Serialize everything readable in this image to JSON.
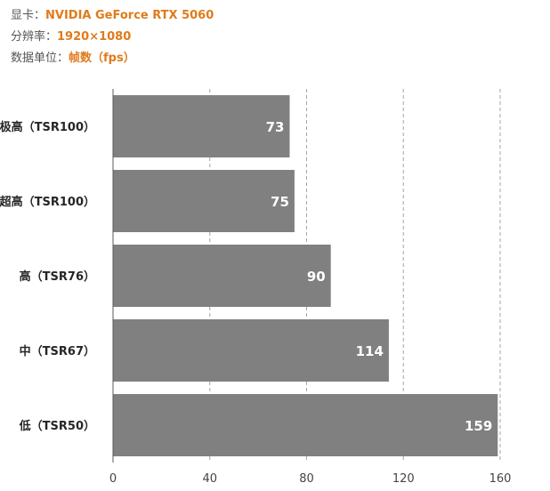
{
  "header": {
    "gpu_label": "显卡：",
    "gpu_value": "NVIDIA GeForce RTX 5060",
    "resolution_label": "分辨率：",
    "resolution_value": "1920×1080",
    "unit_label": "数据单位：",
    "unit_value": "帧数（fps）"
  },
  "colors": {
    "bar": "#808080",
    "bar_label": "#ffffff",
    "highlight_text": "#e07b1a",
    "category_text": "#262626",
    "tick_text": "#444444",
    "grid": "#a6a6a6",
    "axis": "#595959"
  },
  "chart_data": {
    "type": "bar",
    "orientation": "horizontal",
    "categories": [
      "极高（TSR100）",
      "超高（TSR100）",
      "高（TSR76）",
      "中（TSR67）",
      "低（TSR50）"
    ],
    "values": [
      73,
      75,
      90,
      114,
      159
    ],
    "xlim": [
      0,
      160
    ],
    "xticks": [
      0,
      40,
      80,
      120,
      160
    ],
    "grid": true,
    "grid_style": "dashed",
    "data_labels": true,
    "legend": false
  }
}
